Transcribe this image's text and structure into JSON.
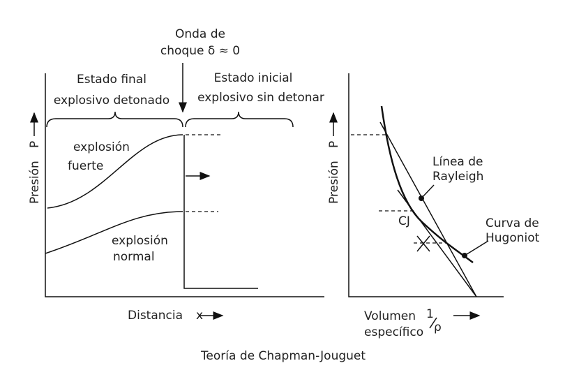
{
  "title": "Teoría de Chapman-Jouguet",
  "left_panel": {
    "shock_label": [
      "Onda de",
      "choque δ ≈ 0"
    ],
    "final_state": [
      "Estado final",
      "explosivo detonado"
    ],
    "initial_state": [
      "Estado inicial",
      "explosivo sin detonar"
    ],
    "strong": [
      "explosión",
      "fuerte"
    ],
    "normal": [
      "explosión",
      "normal"
    ],
    "y_label": "Presión",
    "y_symbol": "P",
    "x_label": "Distancia",
    "x_symbol": "x"
  },
  "right_panel": {
    "y_label": "Presión",
    "y_symbol": "P",
    "rayleigh": [
      "Línea de",
      "Rayleigh"
    ],
    "hugoniot": [
      "Curva de",
      "Hugoniot"
    ],
    "cj": "CJ",
    "x_label": [
      "Volumen",
      "específico"
    ],
    "x_numerator": "1",
    "x_denominator": "ρ"
  }
}
